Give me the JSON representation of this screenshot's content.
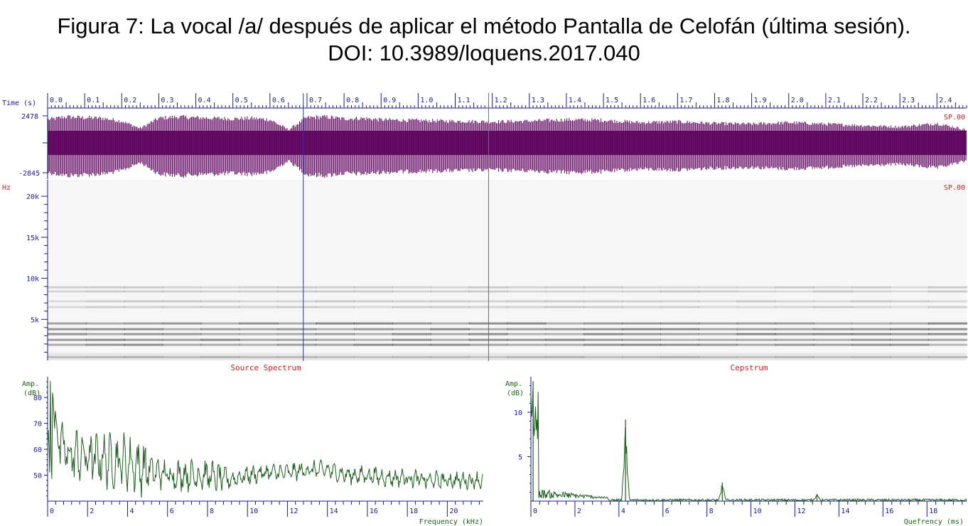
{
  "figure": {
    "title_line1": "Figura 7: La vocal /a/ después de aplicar el método Pantalla de Celofán (última sesión).",
    "title_line2": "DOI: 10.3989/loquens.2017.040"
  },
  "colors": {
    "axis_blue": "#1a1a8c",
    "label_red": "#cc2222",
    "waveform": "#5c005c",
    "spectrum_green": "#1e5e1e",
    "cursor_blue": "#3030a0",
    "cursor_green": "#2a9a2a"
  },
  "chart_data": [
    {
      "type": "line",
      "panel": "waveform",
      "time_axis_label": "Time (s)",
      "time_ticks": [
        "0.0",
        "0.1",
        "0.2",
        "0.3",
        "0.4",
        "0.5",
        "0.6",
        "0.7",
        "0.8",
        "0.9",
        "1.0",
        "1.1",
        "1.2",
        "1.3",
        "1.4",
        "1.5",
        "1.6",
        "1.7",
        "1.8",
        "1.9",
        "2.0",
        "2.1",
        "2.2",
        "2.3",
        "2.4"
      ],
      "xlim": [
        0,
        2.48
      ],
      "ymax_label": "2478",
      "ymin_label": "-2845",
      "ylim": [
        -2845,
        2478
      ],
      "channel_label": "SP.00",
      "envelope": {
        "t": [
          0.0,
          0.05,
          0.1,
          0.15,
          0.2,
          0.25,
          0.3,
          0.35,
          0.4,
          0.45,
          0.5,
          0.55,
          0.6,
          0.65,
          0.7,
          0.75,
          0.8,
          0.85,
          0.9,
          1.0,
          1.1,
          1.2,
          1.3,
          1.4,
          1.5,
          1.6,
          1.7,
          1.8,
          1.9,
          2.0,
          2.1,
          2.2,
          2.3,
          2.4,
          2.48
        ],
        "amp": [
          0.85,
          0.95,
          0.92,
          0.9,
          0.8,
          0.55,
          0.9,
          0.95,
          0.92,
          0.9,
          0.88,
          0.9,
          0.85,
          0.5,
          0.92,
          0.95,
          0.88,
          0.9,
          0.85,
          0.82,
          0.8,
          0.78,
          0.8,
          0.85,
          0.83,
          0.75,
          0.78,
          0.72,
          0.7,
          0.75,
          0.7,
          0.65,
          0.6,
          0.72,
          0.5
        ]
      },
      "cursors": [
        {
          "t": 0.69,
          "color": "blue"
        },
        {
          "t": 1.19,
          "color": "green"
        }
      ]
    },
    {
      "type": "heatmap",
      "panel": "spectrogram",
      "y_unit_label": "Hz",
      "y_ticks": [
        "5k",
        "10k",
        "15k",
        "20k"
      ],
      "ylim_hz": [
        0,
        22000
      ],
      "channel_label": "SP.00",
      "dark_bands_khz": [
        0.4,
        1.9,
        2.5,
        3.2,
        3.8,
        4.5,
        6.5,
        7.2,
        8.4,
        8.9
      ]
    },
    {
      "type": "line",
      "panel": "source-spectrum",
      "title": "Source Spectrum",
      "ylabel": "Amp.",
      "yunit": "(dB)",
      "y_ticks": [
        "50",
        "60",
        "70",
        "80"
      ],
      "ylim": [
        40,
        88
      ],
      "xlabel": "Frequency (kHz)",
      "x_ticks": [
        "0",
        "2",
        "4",
        "6",
        "8",
        "10",
        "12",
        "14",
        "16",
        "18",
        "20"
      ],
      "xlim": [
        0,
        21.8
      ],
      "trend": {
        "f": [
          0,
          0.2,
          0.6,
          1,
          2,
          3,
          4,
          5,
          6,
          7,
          8,
          9,
          10,
          11,
          12,
          13,
          14,
          15,
          16,
          17,
          18,
          19,
          20,
          21.8
        ],
        "db": [
          48,
          78,
          62,
          58,
          57,
          56,
          55,
          52,
          50,
          50,
          50,
          48,
          50,
          51,
          51,
          52,
          52,
          50,
          50,
          49,
          49,
          48,
          48,
          48
        ]
      }
    },
    {
      "type": "line",
      "panel": "cepstrum",
      "title": "Cepstrum",
      "ylabel": "Amp.",
      "yunit": "(dB)",
      "y_ticks": [
        "5",
        "10"
      ],
      "ylim": [
        0,
        14
      ],
      "xlabel": "Quefrency (ms)",
      "x_ticks": [
        "0",
        "2",
        "4",
        "6",
        "8",
        "10",
        "12",
        "14",
        "16",
        "18"
      ],
      "xlim": [
        0,
        19.8
      ],
      "peaks": [
        {
          "q": 0.1,
          "amp": 13.5
        },
        {
          "q": 4.3,
          "amp": 9.2
        },
        {
          "q": 8.7,
          "amp": 2.1
        },
        {
          "q": 13.0,
          "amp": 0.8
        }
      ]
    }
  ]
}
